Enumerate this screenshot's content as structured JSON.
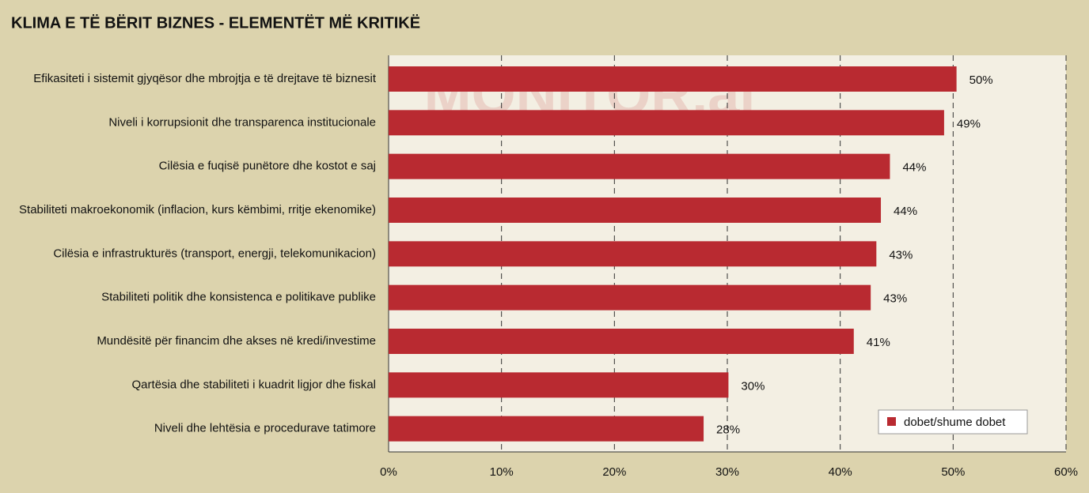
{
  "chart_data": {
    "type": "hbar",
    "title": "KLIMA E TË BËRIT BIZNES - ELEMENTËT MË KRITIKË",
    "watermark": "MONITOR.al",
    "categories": [
      "Efikasiteti i sistemit gjyqësor dhe mbrojtja e të drejtave të biznesit",
      "Niveli i korrupsionit dhe transparenca institucionale",
      "Cilësia e fuqisë punëtore dhe kostot e saj",
      "Stabiliteti makroekonomik (inflacion, kurs këmbimi, rritje ekenomike)",
      "Cilësia e infrastrukturës (transport, energji, telekomunikacion)",
      "Stabiliteti politik dhe konsistenca e politikave publike",
      "Mundësitë për financim dhe akses në kredi/investime",
      "Qartësia dhe stabiliteti i kuadrit ligjor dhe fiskal",
      "Niveli dhe lehtësia e procedurave tatimore"
    ],
    "series": [
      {
        "name": "dobet/shume dobet",
        "color": "#b92a31",
        "values": [
          50.3,
          49.2,
          44.4,
          43.6,
          43.2,
          42.7,
          41.2,
          30.1,
          27.9
        ],
        "value_labels": [
          "50%",
          "49%",
          "44%",
          "44%",
          "43%",
          "43%",
          "41%",
          "30%",
          "28%"
        ]
      }
    ],
    "xlim": [
      0,
      60
    ],
    "xticks": [
      {
        "value": 0,
        "label": "0%"
      },
      {
        "value": 10,
        "label": "10%"
      },
      {
        "value": 20,
        "label": "20%"
      },
      {
        "value": 30,
        "label": "30%"
      },
      {
        "value": 40,
        "label": "40%"
      },
      {
        "value": 50,
        "label": "50%"
      },
      {
        "value": 60,
        "label": "60%"
      }
    ],
    "grid": true,
    "legend": "lower right"
  }
}
